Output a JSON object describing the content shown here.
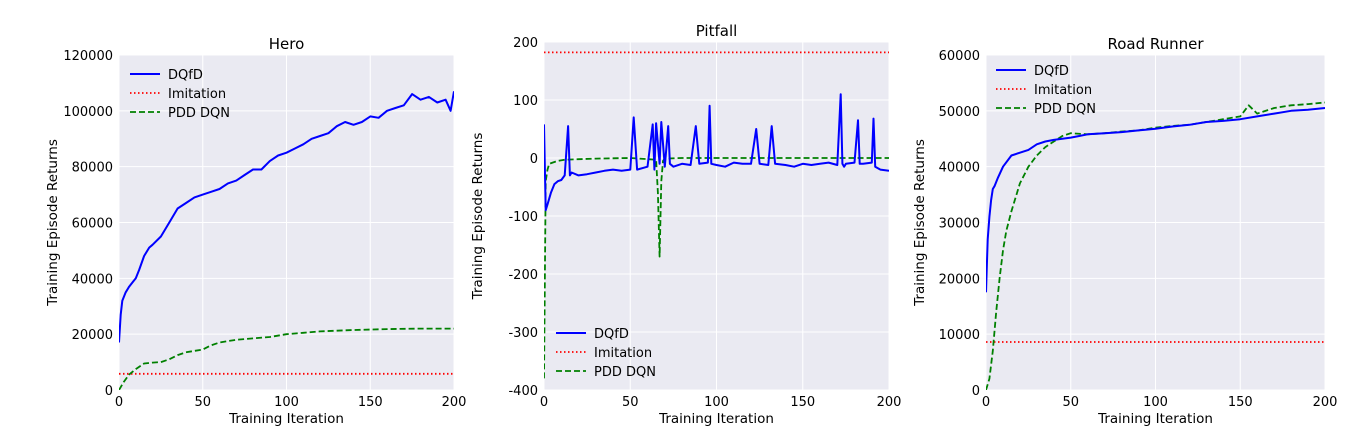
{
  "chart_data": [
    {
      "type": "line",
      "title": "Hero",
      "xlabel": "Training Iteration",
      "ylabel": "Training Episode Returns",
      "xlim": [
        0,
        200
      ],
      "ylim": [
        0,
        120000
      ],
      "xticks": [
        0,
        50,
        100,
        150,
        200
      ],
      "yticks": [
        0,
        20000,
        40000,
        60000,
        80000,
        100000,
        120000
      ],
      "grid": true,
      "legend_position": "top-left",
      "series": [
        {
          "name": "DQfD",
          "color": "#0000ff",
          "style": "solid",
          "x": [
            0,
            1,
            2,
            4,
            6,
            8,
            10,
            12,
            15,
            18,
            20,
            25,
            30,
            35,
            40,
            45,
            50,
            55,
            60,
            65,
            70,
            75,
            80,
            85,
            90,
            95,
            100,
            105,
            110,
            115,
            120,
            125,
            130,
            135,
            140,
            145,
            150,
            155,
            160,
            165,
            170,
            175,
            180,
            185,
            190,
            195,
            198,
            200
          ],
          "y": [
            17000,
            27000,
            32000,
            35000,
            37000,
            38500,
            40000,
            43000,
            48000,
            51000,
            52000,
            55000,
            60000,
            65000,
            67000,
            69000,
            70000,
            71000,
            72000,
            74000,
            75000,
            77000,
            79000,
            79000,
            82000,
            84000,
            85000,
            86500,
            88000,
            90000,
            91000,
            92000,
            94500,
            96000,
            95000,
            96000,
            98000,
            97500,
            100000,
            101000,
            102000,
            106000,
            104000,
            105000,
            103000,
            104000,
            100000,
            107000
          ]
        },
        {
          "name": "Imitation",
          "color": "#ff0000",
          "style": "dotted",
          "x": [
            0,
            200
          ],
          "y": [
            5800,
            5800
          ]
        },
        {
          "name": "PDD DQN",
          "color": "#008000",
          "style": "dashed",
          "x": [
            0,
            3,
            6,
            10,
            15,
            20,
            25,
            30,
            35,
            40,
            45,
            50,
            55,
            60,
            65,
            70,
            80,
            90,
            100,
            110,
            120,
            140,
            160,
            180,
            200
          ],
          "y": [
            0,
            3000,
            5500,
            7500,
            9500,
            9800,
            10000,
            11000,
            12500,
            13500,
            14000,
            14500,
            16000,
            17000,
            17500,
            18000,
            18500,
            19000,
            20000,
            20500,
            21000,
            21500,
            21800,
            22000,
            22000
          ]
        }
      ]
    },
    {
      "type": "line",
      "title": "Pitfall",
      "xlabel": "Training Iteration",
      "ylabel": "Training Episode Returns",
      "xlim": [
        0,
        200
      ],
      "ylim": [
        -400,
        200
      ],
      "xticks": [
        0,
        50,
        100,
        150,
        200
      ],
      "yticks": [
        -400,
        -300,
        -200,
        -100,
        0,
        100,
        200
      ],
      "grid": true,
      "legend_position": "bottom-left",
      "series": [
        {
          "name": "DQfD",
          "color": "#0000ff",
          "style": "solid",
          "x": [
            0,
            1,
            2,
            4,
            6,
            8,
            10,
            12,
            14,
            15,
            16,
            20,
            25,
            30,
            35,
            40,
            45,
            50,
            52,
            54,
            60,
            63,
            64,
            65,
            67,
            68,
            70,
            72,
            73,
            75,
            80,
            85,
            88,
            90,
            95,
            96,
            97,
            100,
            105,
            110,
            115,
            120,
            123,
            125,
            130,
            132,
            134,
            140,
            145,
            150,
            155,
            160,
            165,
            170,
            172,
            173,
            174,
            175,
            180,
            182,
            183,
            185,
            190,
            191,
            192,
            195,
            200
          ],
          "y": [
            58,
            -90,
            -80,
            -60,
            -45,
            -40,
            -38,
            -30,
            55,
            -30,
            -25,
            -30,
            -28,
            -25,
            -22,
            -20,
            -22,
            -20,
            70,
            -20,
            -15,
            58,
            -20,
            60,
            -10,
            62,
            -15,
            55,
            -10,
            -15,
            -10,
            -12,
            55,
            -10,
            -8,
            90,
            -10,
            -12,
            -15,
            -8,
            -10,
            -10,
            50,
            -10,
            -12,
            55,
            -10,
            -12,
            -15,
            -10,
            -12,
            -10,
            -8,
            -12,
            110,
            -10,
            -15,
            -10,
            -8,
            65,
            -10,
            -10,
            -8,
            68,
            -15,
            -20,
            -22
          ]
        },
        {
          "name": "Imitation",
          "color": "#ff0000",
          "style": "dotted",
          "x": [
            0,
            200
          ],
          "y": [
            182,
            182
          ]
        },
        {
          "name": "PDD DQN",
          "color": "#008000",
          "style": "dashed",
          "x": [
            0,
            1,
            2,
            3,
            5,
            8,
            12,
            20,
            30,
            50,
            65,
            66,
            67,
            68,
            69,
            70,
            80,
            100,
            150,
            200
          ],
          "y": [
            -380,
            -40,
            -20,
            -10,
            -8,
            -5,
            -3,
            -2,
            -1,
            0,
            -3,
            -60,
            -170,
            -40,
            -5,
            -1,
            0,
            0,
            0,
            0
          ]
        }
      ]
    },
    {
      "type": "line",
      "title": "Road Runner",
      "xlabel": "Training Iteration",
      "ylabel": "Training Episode Returns",
      "xlim": [
        0,
        200
      ],
      "ylim": [
        0,
        60000
      ],
      "xticks": [
        0,
        50,
        100,
        150,
        200
      ],
      "yticks": [
        0,
        10000,
        20000,
        30000,
        40000,
        50000,
        60000
      ],
      "grid": true,
      "legend_position": "top-left",
      "series": [
        {
          "name": "DQfD",
          "color": "#0000ff",
          "style": "solid",
          "x": [
            0,
            1,
            2,
            3,
            4,
            5,
            7,
            10,
            15,
            20,
            25,
            30,
            35,
            40,
            45,
            50,
            55,
            60,
            70,
            80,
            90,
            100,
            110,
            120,
            130,
            140,
            150,
            160,
            170,
            180,
            190,
            200
          ],
          "y": [
            17500,
            27000,
            31000,
            34000,
            36000,
            36500,
            38000,
            40000,
            42000,
            42500,
            43000,
            44000,
            44500,
            44800,
            45000,
            45200,
            45500,
            45800,
            46000,
            46200,
            46500,
            46800,
            47200,
            47500,
            48000,
            48200,
            48500,
            49000,
            49500,
            50000,
            50200,
            50500
          ]
        },
        {
          "name": "Imitation",
          "color": "#ff0000",
          "style": "dotted",
          "x": [
            0,
            200
          ],
          "y": [
            8600,
            8600
          ]
        },
        {
          "name": "PDD DQN",
          "color": "#008000",
          "style": "dashed",
          "x": [
            0,
            2,
            4,
            6,
            8,
            10,
            12,
            15,
            18,
            20,
            25,
            30,
            35,
            40,
            45,
            50,
            60,
            70,
            80,
            90,
            100,
            110,
            120,
            130,
            140,
            150,
            155,
            160,
            170,
            180,
            190,
            200
          ],
          "y": [
            0,
            2000,
            7000,
            14000,
            20000,
            25000,
            28500,
            32000,
            35000,
            37000,
            40000,
            42000,
            43500,
            44500,
            45500,
            46000,
            45800,
            46000,
            46300,
            46500,
            47000,
            47300,
            47500,
            48000,
            48500,
            49000,
            51000,
            49500,
            50500,
            51000,
            51200,
            51500
          ]
        }
      ]
    }
  ]
}
